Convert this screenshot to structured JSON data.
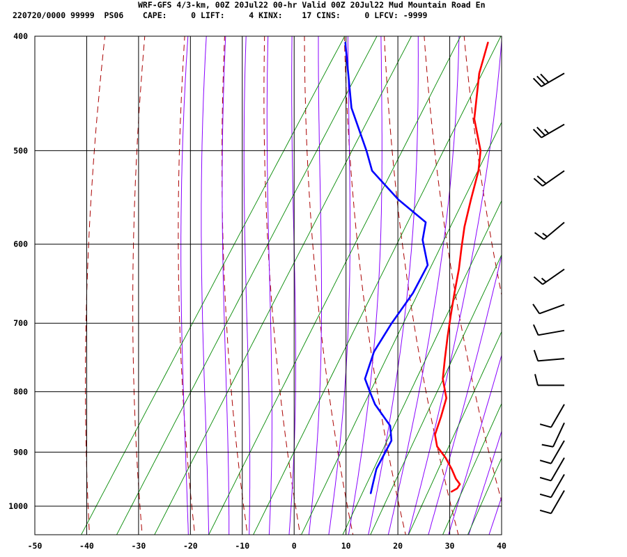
{
  "header": {
    "title": "WRF-GFS 4/3-km, 00Z 20Jul22 00-hr Valid 00Z 20Jul22 Mud Mountain Road En",
    "indices": "220720/0000 99999  PS06    CAPE:     0 LIFT:     4 KINX:    17 CINS:     0 LFCV: -9999"
  },
  "colors": {
    "temperature": "#ff0000",
    "dewpoint": "#0000ff",
    "dry_adiabat": "#aa0000",
    "moist_adiabat": "#8800ff",
    "mixing_ratio": "#008800",
    "grid": "#000000"
  },
  "chart_data": {
    "type": "line",
    "chart_kind": "skew-T log-p sounding",
    "title": "",
    "xlabel": "",
    "ylabel": "",
    "xlim": [
      -50,
      40
    ],
    "ylim": [
      1040,
      400
    ],
    "y_scale": "log",
    "grid": true,
    "x_ticks": [
      -50,
      -40,
      -30,
      -20,
      -10,
      0,
      10,
      20,
      30,
      40
    ],
    "y_ticks": [
      400,
      500,
      600,
      700,
      800,
      900,
      1000
    ],
    "series": [
      {
        "color": "#ff0000",
        "points": [
          [
            -21.5,
            405
          ],
          [
            -19.5,
            430
          ],
          [
            -15,
            470
          ],
          [
            -10,
            500
          ],
          [
            -8,
            520
          ],
          [
            -6,
            550
          ],
          [
            -4,
            580
          ],
          [
            -2,
            605
          ],
          [
            0,
            630
          ],
          [
            2,
            660
          ],
          [
            4,
            690
          ],
          [
            6,
            720
          ],
          [
            8,
            750
          ],
          [
            10,
            780
          ],
          [
            13,
            810
          ],
          [
            14.2,
            840
          ],
          [
            15.2,
            870
          ],
          [
            17,
            890
          ],
          [
            20,
            910
          ],
          [
            22.5,
            930
          ],
          [
            24.5,
            948
          ],
          [
            25.9,
            958
          ],
          [
            25.9,
            966
          ],
          [
            25.2,
            972
          ]
        ]
      },
      {
        "color": "#0000ff",
        "points": [
          [
            -49,
            405
          ],
          [
            -40,
            460
          ],
          [
            -32,
            500
          ],
          [
            -28.5,
            520
          ],
          [
            -20,
            550
          ],
          [
            -12,
            575
          ],
          [
            -10.5,
            595
          ],
          [
            -6.5,
            625
          ],
          [
            -6,
            660
          ],
          [
            -6.5,
            700
          ],
          [
            -6.5,
            740
          ],
          [
            -5,
            780
          ],
          [
            -2.5,
            800
          ],
          [
            0,
            820
          ],
          [
            5.5,
            855
          ],
          [
            7.5,
            880
          ],
          [
            8,
            930
          ],
          [
            9.2,
            960
          ],
          [
            9.8,
            975
          ]
        ]
      }
    ],
    "wind_barbs": [
      {
        "p": 430,
        "dir": 240,
        "speed": 30
      },
      {
        "p": 475,
        "dir": 240,
        "speed": 25
      },
      {
        "p": 520,
        "dir": 235,
        "speed": 20
      },
      {
        "p": 575,
        "dir": 230,
        "speed": 15
      },
      {
        "p": 630,
        "dir": 235,
        "speed": 15
      },
      {
        "p": 675,
        "dir": 250,
        "speed": 10
      },
      {
        "p": 710,
        "dir": 260,
        "speed": 10
      },
      {
        "p": 750,
        "dir": 265,
        "speed": 10
      },
      {
        "p": 790,
        "dir": 270,
        "speed": 10
      },
      {
        "p": 820,
        "dir": 210,
        "speed": 10
      },
      {
        "p": 850,
        "dir": 205,
        "speed": 10
      },
      {
        "p": 880,
        "dir": 210,
        "speed": 10
      },
      {
        "p": 910,
        "dir": 210,
        "speed": 10
      },
      {
        "p": 940,
        "dir": 210,
        "speed": 10
      },
      {
        "p": 970,
        "dir": 210,
        "speed": 10
      }
    ]
  }
}
